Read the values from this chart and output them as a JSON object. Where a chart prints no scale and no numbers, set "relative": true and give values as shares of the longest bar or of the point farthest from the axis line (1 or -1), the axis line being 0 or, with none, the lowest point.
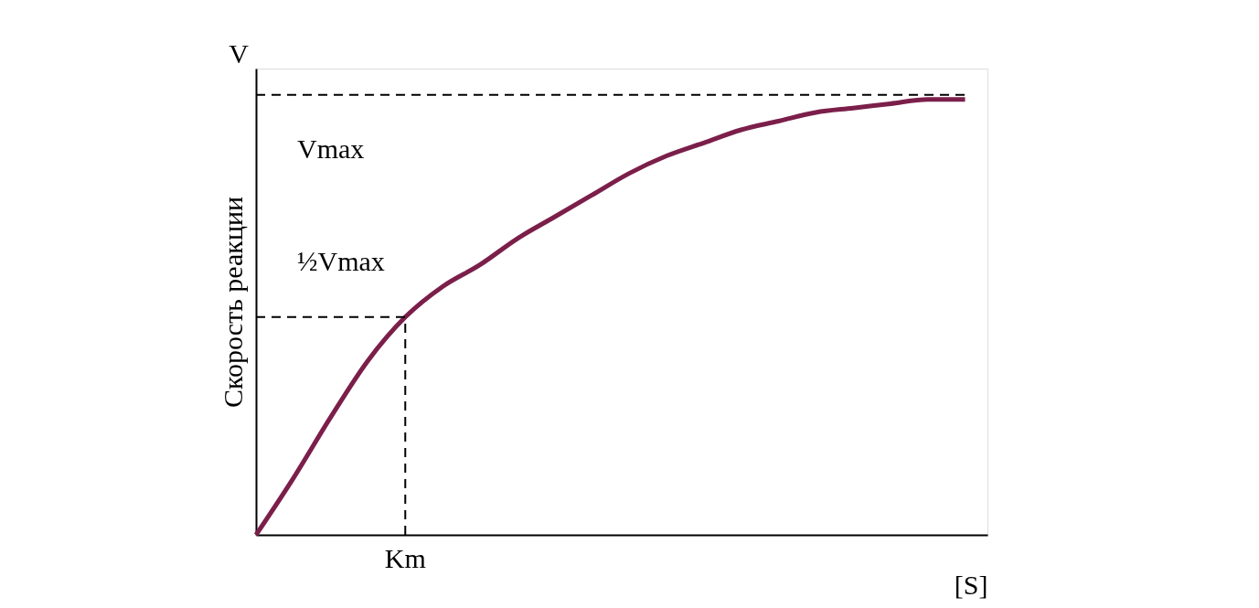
{
  "chart_data": {
    "type": "line",
    "relative": true,
    "xlabel": "[S]",
    "ylabel": "Скорость реакции",
    "annotations": [
      "V",
      "Km"
    ],
    "categories": [
      null,
      null,
      null,
      null,
      null,
      null,
      null,
      null,
      null,
      null,
      null,
      null,
      null,
      null,
      null,
      null,
      null,
      null,
      null,
      null
    ],
    "series": [
      {
        "color": "#7b1f4a",
        "values": [
          0,
          0.13,
          0.27,
          0.4,
          0.5,
          0.57,
          0.62,
          0.68,
          0.73,
          0.78,
          0.83,
          0.87,
          0.9,
          0.93,
          0.95,
          0.97,
          0.98,
          0.99,
          1.0,
          1.0
        ]
      }
    ],
    "ref_lines": [
      {
        "axis": "y",
        "value": 1.01,
        "label": "Vmax",
        "line_style": "dashed",
        "color": "#000000"
      },
      {
        "axis": "y",
        "value": 0.5,
        "label": "½Vmax",
        "line_style": "dashed",
        "color": "#000000"
      }
    ],
    "grid": false,
    "legend": false,
    "marker": "none",
    "line_style": "solid"
  }
}
